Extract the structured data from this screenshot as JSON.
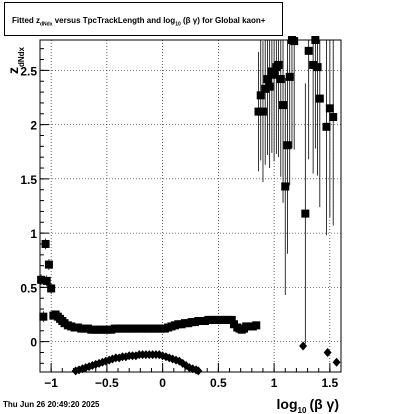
{
  "title": {
    "text": "Fitted  z",
    "sub1": "dNdx",
    "mid": "  versus TpcTrackLength and log",
    "sub2": "10",
    "tail": " (β γ) for Global kaon+"
  },
  "footer": "Thu Jun 26 20:49:20 2025",
  "chart_data": {
    "type": "scatter",
    "title": "Fitted z_dNdx versus TpcTrackLength and log10(β γ) for Global kaon+",
    "xlabel": {
      "main": "log",
      "sub": "10",
      "tail": "(β γ)"
    },
    "ylabel": {
      "main": "z",
      "sub": "dNdx"
    },
    "xlim": [
      -1.1,
      1.6
    ],
    "ylim": [
      -0.28,
      2.78
    ],
    "xticks": [
      -1,
      -0.5,
      0,
      0.5,
      1,
      1.5
    ],
    "xtick_labels": [
      "−1",
      "−0.5",
      "0",
      "0.5",
      "1",
      "1.5"
    ],
    "yticks": [
      0,
      0.5,
      1,
      1.5,
      2,
      2.5
    ],
    "ytick_labels": [
      "0",
      "0.5",
      "1",
      "1.5",
      "2",
      "2.5"
    ],
    "grid": true,
    "series": [
      {
        "marker": "square",
        "points": [
          [
            -1.09,
            0.57,
            0.05
          ],
          [
            -1.07,
            0.23,
            0.05
          ],
          [
            -1.05,
            0.9,
            0.05
          ],
          [
            -1.04,
            0.56,
            0.05
          ],
          [
            -1.02,
            0.71,
            0.05
          ],
          [
            -1.0,
            0.49,
            0.05
          ],
          [
            -0.98,
            0.24,
            0.02
          ],
          [
            -0.96,
            0.25,
            0.02
          ],
          [
            -0.94,
            0.23,
            0.02
          ],
          [
            -0.92,
            0.21,
            0.02
          ],
          [
            -0.9,
            0.19,
            0.02
          ],
          [
            -0.88,
            0.17,
            0.01
          ],
          [
            -0.85,
            0.15,
            0.01
          ],
          [
            -0.82,
            0.14,
            0.01
          ],
          [
            -0.79,
            0.13,
            0.01
          ],
          [
            -0.76,
            0.13,
            0.01
          ],
          [
            -0.73,
            0.12,
            0.01
          ],
          [
            -0.7,
            0.12,
            0.01
          ],
          [
            -0.67,
            0.12,
            0.01
          ],
          [
            -0.64,
            0.11,
            0.01
          ],
          [
            -0.61,
            0.11,
            0.01
          ],
          [
            -0.58,
            0.11,
            0.01
          ],
          [
            -0.55,
            0.11,
            0.01
          ],
          [
            -0.52,
            0.11,
            0.01
          ],
          [
            -0.49,
            0.11,
            0.01
          ],
          [
            -0.46,
            0.11,
            0.01
          ],
          [
            -0.43,
            0.12,
            0.01
          ],
          [
            -0.4,
            0.12,
            0.01
          ],
          [
            -0.37,
            0.12,
            0.01
          ],
          [
            -0.34,
            0.12,
            0.01
          ],
          [
            -0.31,
            0.12,
            0.01
          ],
          [
            -0.28,
            0.12,
            0.01
          ],
          [
            -0.25,
            0.12,
            0.01
          ],
          [
            -0.22,
            0.12,
            0.01
          ],
          [
            -0.19,
            0.12,
            0.01
          ],
          [
            -0.16,
            0.12,
            0.01
          ],
          [
            -0.13,
            0.12,
            0.01
          ],
          [
            -0.1,
            0.12,
            0.01
          ],
          [
            -0.07,
            0.12,
            0.01
          ],
          [
            -0.04,
            0.12,
            0.01
          ],
          [
            -0.01,
            0.12,
            0.01
          ],
          [
            0.02,
            0.12,
            0.01
          ],
          [
            0.05,
            0.13,
            0.01
          ],
          [
            0.08,
            0.14,
            0.01
          ],
          [
            0.11,
            0.15,
            0.01
          ],
          [
            0.14,
            0.16,
            0.01
          ],
          [
            0.17,
            0.16,
            0.01
          ],
          [
            0.2,
            0.17,
            0.01
          ],
          [
            0.23,
            0.17,
            0.01
          ],
          [
            0.26,
            0.18,
            0.01
          ],
          [
            0.29,
            0.18,
            0.01
          ],
          [
            0.32,
            0.19,
            0.01
          ],
          [
            0.35,
            0.19,
            0.01
          ],
          [
            0.38,
            0.19,
            0.01
          ],
          [
            0.41,
            0.2,
            0.01
          ],
          [
            0.44,
            0.2,
            0.01
          ],
          [
            0.47,
            0.2,
            0.01
          ],
          [
            0.5,
            0.2,
            0.01
          ],
          [
            0.53,
            0.2,
            0.01
          ],
          [
            0.56,
            0.2,
            0.01
          ],
          [
            0.59,
            0.2,
            0.01
          ],
          [
            0.62,
            0.2,
            0.01
          ],
          [
            0.64,
            0.16,
            0.01
          ],
          [
            0.67,
            0.13,
            0.01
          ],
          [
            0.69,
            0.12,
            0.01
          ],
          [
            0.71,
            0.11,
            0.01
          ],
          [
            0.73,
            0.12,
            0.01
          ],
          [
            0.75,
            0.14,
            0.01
          ],
          [
            0.78,
            0.14,
            0.01
          ],
          [
            0.81,
            0.14,
            0.01
          ],
          [
            0.84,
            0.15,
            0.01
          ],
          [
            0.86,
            2.12,
            0.55
          ],
          [
            0.88,
            2.27,
            0.6
          ],
          [
            0.9,
            2.12,
            0.65
          ],
          [
            0.92,
            2.33,
            0.7
          ],
          [
            0.94,
            2.42,
            0.7
          ],
          [
            0.96,
            2.35,
            0.75
          ],
          [
            0.98,
            2.49,
            0.75
          ],
          [
            1.0,
            2.46,
            0.8
          ],
          [
            1.02,
            2.53,
            0.8
          ],
          [
            1.04,
            2.55,
            0.85
          ],
          [
            1.06,
            2.42,
            0.9
          ],
          [
            1.08,
            2.18,
            0.9
          ],
          [
            1.1,
            1.43,
            1.0
          ],
          [
            1.12,
            1.81,
            1.0
          ],
          [
            1.14,
            2.44,
            1.0
          ],
          [
            1.16,
            2.78,
            1.0
          ],
          [
            1.18,
            2.77,
            1.0
          ],
          [
            1.28,
            1.18,
            1.2
          ],
          [
            1.31,
            2.68,
            1.0
          ],
          [
            1.35,
            2.55,
            1.0
          ],
          [
            1.37,
            2.78,
            1.0
          ],
          [
            1.39,
            2.53,
            1.0
          ],
          [
            1.41,
            2.24,
            1.0
          ],
          [
            1.47,
            1.98,
            1.0
          ],
          [
            1.5,
            2.15,
            1.0
          ],
          [
            1.53,
            2.07,
            1.0
          ]
        ]
      },
      {
        "marker": "diamond",
        "points": [
          [
            -0.78,
            -0.27
          ],
          [
            -0.75,
            -0.26
          ],
          [
            -0.72,
            -0.25
          ],
          [
            -0.69,
            -0.24
          ],
          [
            -0.66,
            -0.23
          ],
          [
            -0.63,
            -0.22
          ],
          [
            -0.6,
            -0.21
          ],
          [
            -0.57,
            -0.2
          ],
          [
            -0.54,
            -0.19
          ],
          [
            -0.51,
            -0.18
          ],
          [
            -0.48,
            -0.17
          ],
          [
            -0.45,
            -0.16
          ],
          [
            -0.42,
            -0.15
          ],
          [
            -0.39,
            -0.15
          ],
          [
            -0.36,
            -0.14
          ],
          [
            -0.33,
            -0.14
          ],
          [
            -0.3,
            -0.13
          ],
          [
            -0.27,
            -0.13
          ],
          [
            -0.24,
            -0.13
          ],
          [
            -0.21,
            -0.12
          ],
          [
            -0.18,
            -0.12
          ],
          [
            -0.15,
            -0.12
          ],
          [
            -0.12,
            -0.12
          ],
          [
            -0.09,
            -0.12
          ],
          [
            -0.06,
            -0.12
          ],
          [
            -0.03,
            -0.12
          ],
          [
            0.0,
            -0.13
          ],
          [
            0.03,
            -0.14
          ],
          [
            0.06,
            -0.15
          ],
          [
            0.09,
            -0.16
          ],
          [
            0.12,
            -0.17
          ],
          [
            0.15,
            -0.18
          ],
          [
            0.18,
            -0.2
          ],
          [
            0.21,
            -0.22
          ],
          [
            0.24,
            -0.24
          ],
          [
            0.27,
            -0.25
          ],
          [
            0.3,
            -0.26
          ],
          [
            0.32,
            -0.27
          ],
          [
            1.26,
            -0.04
          ],
          [
            1.48,
            -0.1
          ],
          [
            1.56,
            -0.19
          ]
        ]
      }
    ]
  }
}
